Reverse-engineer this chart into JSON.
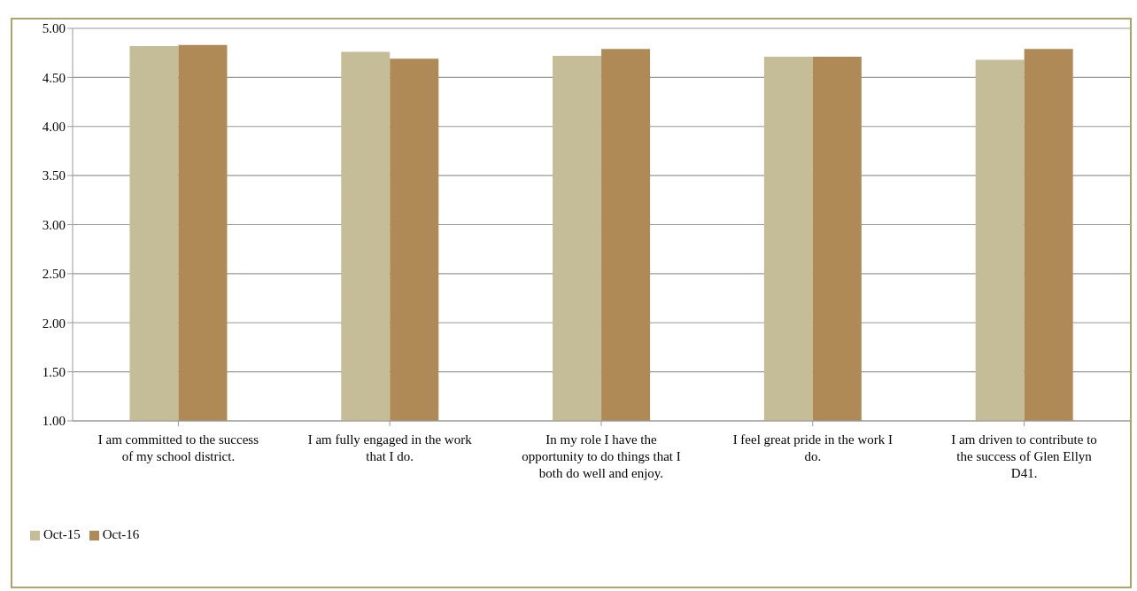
{
  "chart_data": {
    "type": "bar",
    "categories": [
      "I am committed to the success of my school district.",
      "I am fully engaged in the work that I do.",
      "In my role I have the opportunity to do things that I both do well and enjoy.",
      "I feel great pride in the work I do.",
      "I am driven to contribute to the success of Glen Ellyn D41."
    ],
    "series": [
      {
        "name": "Oct-15",
        "color": "#c4bd97",
        "values": [
          4.82,
          4.76,
          4.72,
          4.71,
          4.68
        ]
      },
      {
        "name": "Oct-16",
        "color": "#af8a57",
        "values": [
          4.83,
          4.69,
          4.79,
          4.71,
          4.79
        ]
      }
    ],
    "ylim": [
      1,
      5
    ],
    "yticks": [
      {
        "value": 1,
        "label": "1.00"
      },
      {
        "value": 1.5,
        "label": "1.50"
      },
      {
        "value": 2,
        "label": "2.00"
      },
      {
        "value": 2.5,
        "label": "2.50"
      },
      {
        "value": 3,
        "label": "3.00"
      },
      {
        "value": 3.5,
        "label": "3.50"
      },
      {
        "value": 4,
        "label": "4.00"
      },
      {
        "value": 4.5,
        "label": "4.50"
      },
      {
        "value": 5,
        "label": "5.00"
      }
    ],
    "grid": "y",
    "legend": "bottom left"
  }
}
